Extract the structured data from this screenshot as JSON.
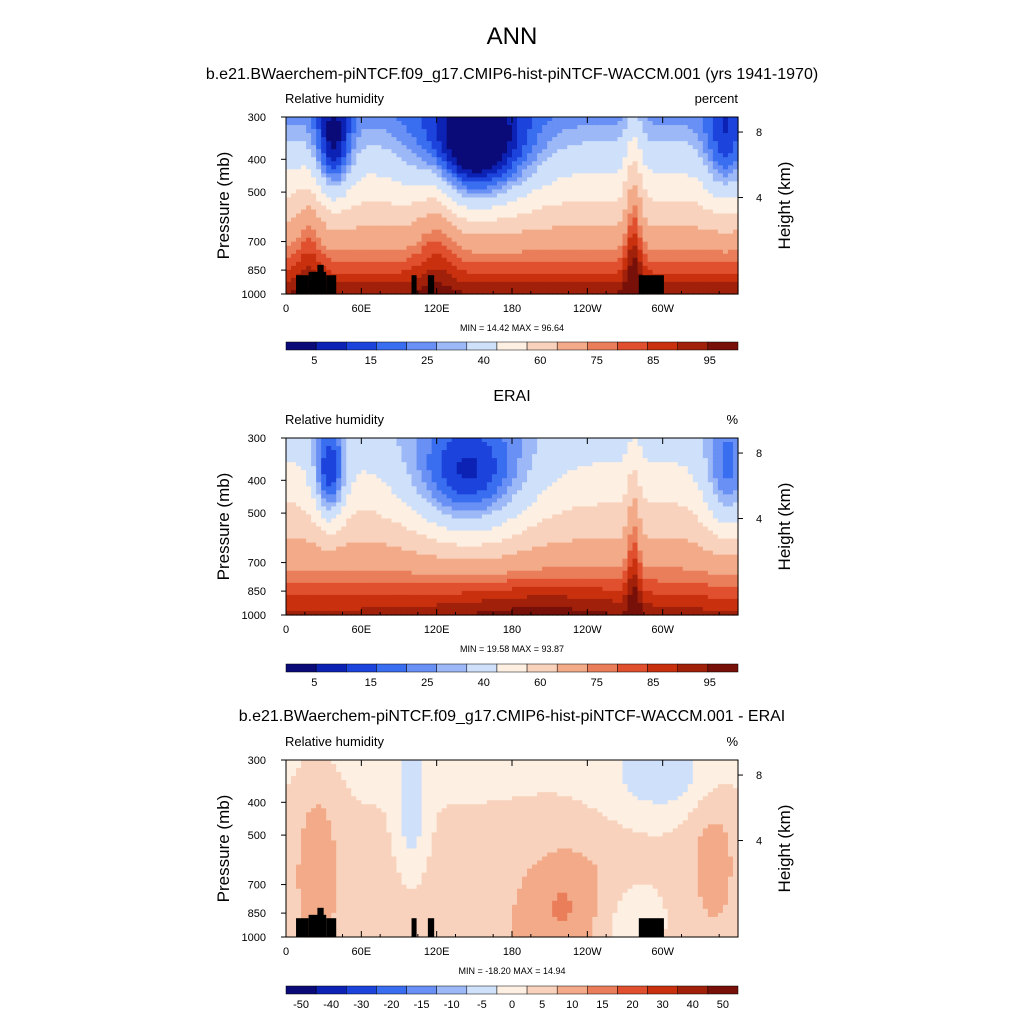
{
  "figure": {
    "title": "ANN",
    "subtitle": "b.e21.BWaerchem-piNTCF.f09_g17.CMIP6-hist-piNTCF-WACCM.001 (yrs 1941-1970)"
  },
  "colors": {
    "abs_palette": [
      "#0a0a78",
      "#0c22b4",
      "#1c44dc",
      "#3a6ef0",
      "#6990f4",
      "#9db8f6",
      "#cfe0fa",
      "#fdf0e2",
      "#f8d2bc",
      "#f2aa88",
      "#ea7e5a",
      "#e0502e",
      "#c8300e",
      "#a0200a",
      "#761008"
    ],
    "diff_palette": [
      "#0a0a78",
      "#0c22b4",
      "#1c44dc",
      "#3a6ef0",
      "#6990f4",
      "#9db8f6",
      "#cfe0fa",
      "#fdf0e2",
      "#f8d2bc",
      "#f2aa88",
      "#ea7e5a",
      "#e0502e",
      "#c8300e",
      "#a0200a",
      "#761008"
    ],
    "land_mask": "#000000"
  },
  "chart_data": [
    {
      "type": "heatmap",
      "panel_title": "",
      "left_label": "Relative humidity",
      "right_label": "percent",
      "ylabel": "Pressure (mb)",
      "ylabel_right": "Height (km)",
      "x_ticks": [
        "0",
        "60E",
        "120E",
        "180",
        "120W",
        "60W"
      ],
      "y_ticks": [
        "300",
        "400",
        "500",
        "700",
        "850",
        "1000"
      ],
      "y_right_ticks": [
        "8",
        "4"
      ],
      "stats": "MIN =  14.42  MAX =  96.64",
      "colorbar_labels": [
        "5",
        "15",
        "25",
        "40",
        "60",
        "75",
        "85",
        "95"
      ],
      "field": "model",
      "min": 14.42,
      "max": 96.64,
      "land_mask": true
    },
    {
      "type": "heatmap",
      "panel_title": "ERAI",
      "left_label": "Relative humidity",
      "right_label": "%",
      "ylabel": "Pressure (mb)",
      "ylabel_right": "Height (km)",
      "x_ticks": [
        "0",
        "60E",
        "120E",
        "180",
        "120W",
        "60W"
      ],
      "y_ticks": [
        "300",
        "400",
        "500",
        "700",
        "850",
        "1000"
      ],
      "y_right_ticks": [
        "8",
        "4"
      ],
      "stats": "MIN =  19.58  MAX =  93.87",
      "colorbar_labels": [
        "5",
        "15",
        "25",
        "40",
        "60",
        "75",
        "85",
        "95"
      ],
      "field": "obs",
      "min": 19.58,
      "max": 93.87,
      "land_mask": false
    },
    {
      "type": "heatmap",
      "panel_title": "b.e21.BWaerchem-piNTCF.f09_g17.CMIP6-hist-piNTCF-WACCM.001 - ERAI",
      "left_label": "Relative humidity",
      "right_label": "%",
      "ylabel": "Pressure (mb)",
      "ylabel_right": "Height (km)",
      "x_ticks": [
        "0",
        "60E",
        "120E",
        "180",
        "120W",
        "60W"
      ],
      "y_ticks": [
        "300",
        "400",
        "500",
        "700",
        "850",
        "1000"
      ],
      "y_right_ticks": [
        "8",
        "4"
      ],
      "stats": "MIN = -18.20  MAX =  14.94",
      "colorbar_labels": [
        "-50",
        "-40",
        "-30",
        "-20",
        "-15",
        "-10",
        "-5",
        "0",
        "5",
        "10",
        "15",
        "20",
        "30",
        "40",
        "50"
      ],
      "field": "diff",
      "min": -18.2,
      "max": 14.94,
      "land_mask": true
    }
  ]
}
